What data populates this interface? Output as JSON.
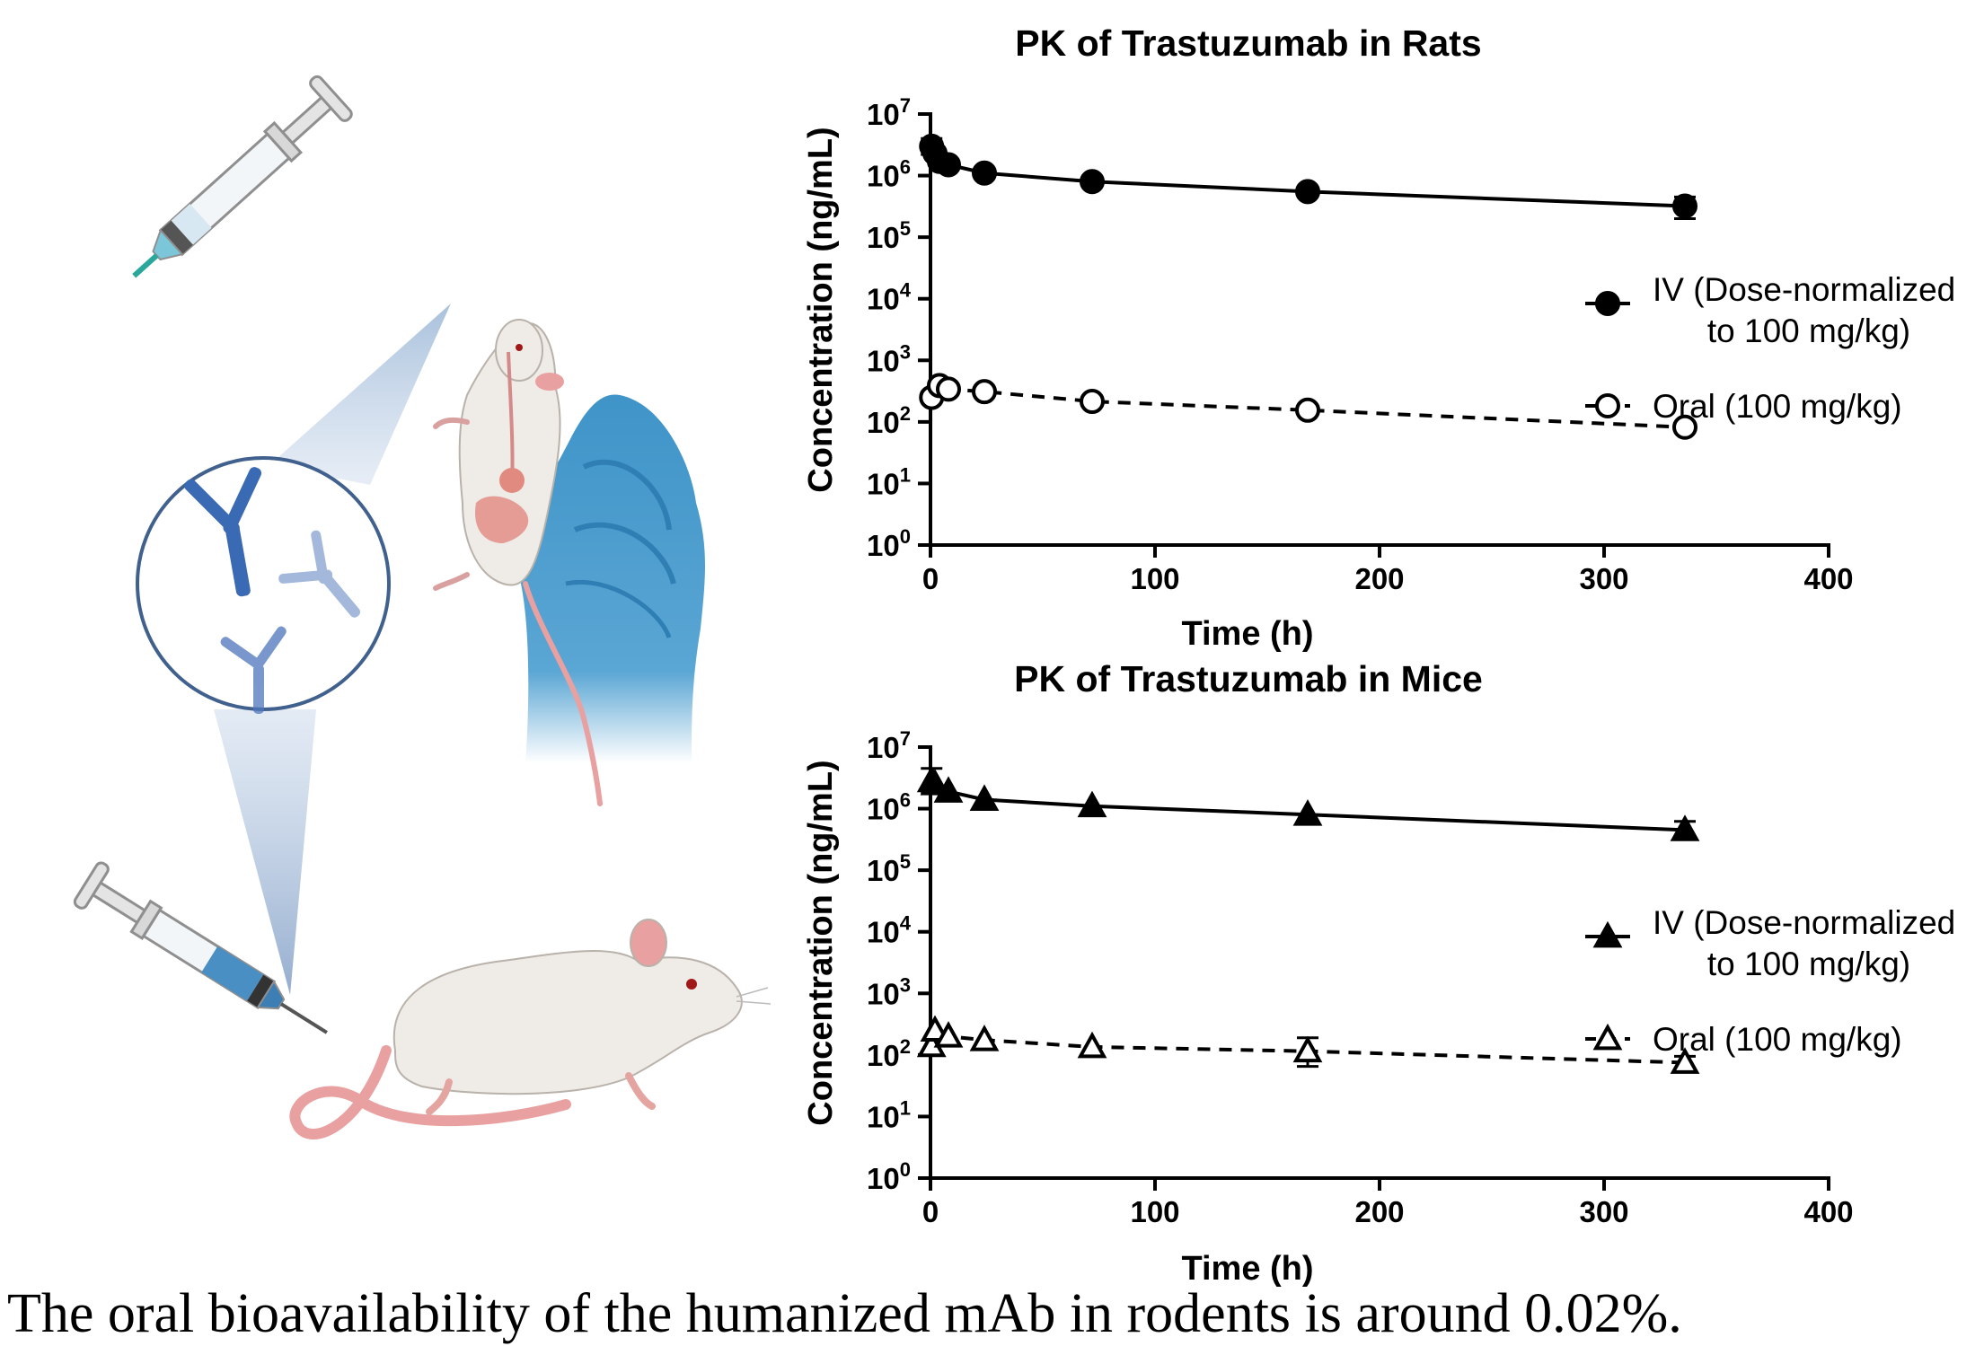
{
  "caption": "The oral bioavailability of the humanized mAb in rodents is around 0.02%.",
  "illustration": {
    "icons": [
      "syringe-icon",
      "rat-icon",
      "gloved-hand-icon",
      "antibody-icon",
      "mouse-icon"
    ],
    "colors": {
      "glove": "#4a9ccc",
      "antibody": "#3a6ab4",
      "rodent": "#efebe6",
      "tail": "#e8a0a0"
    }
  },
  "chart_data": [
    {
      "type": "line",
      "title": "PK of Trastuzumab in Rats",
      "xlabel": "Time (h)",
      "ylabel": "Concentration (ng/mL)",
      "xlim": [
        0,
        400
      ],
      "xticks": [
        0,
        100,
        200,
        300,
        400
      ],
      "ylim": [
        1,
        10000000
      ],
      "yscale": "log",
      "yticks": [
        {
          "base": "10",
          "exp": "0"
        },
        {
          "base": "10",
          "exp": "1"
        },
        {
          "base": "10",
          "exp": "2"
        },
        {
          "base": "10",
          "exp": "3"
        },
        {
          "base": "10",
          "exp": "4"
        },
        {
          "base": "10",
          "exp": "5"
        },
        {
          "base": "10",
          "exp": "6"
        },
        {
          "base": "10",
          "exp": "7"
        }
      ],
      "legend_position": "right",
      "series": [
        {
          "name_line1": "IV (Dose-normalized",
          "name_line2": "to 100 mg/kg)",
          "marker": "filled-circle",
          "line_style": "solid",
          "x": [
            0.5,
            2,
            4,
            8,
            24,
            72,
            168,
            336
          ],
          "y": [
            3000000,
            2300000,
            1700000,
            1500000,
            1100000,
            800000,
            550000,
            320000
          ],
          "error_upper": [
            4000000,
            null,
            null,
            null,
            null,
            null,
            null,
            450000
          ],
          "error_lower": [
            2200000,
            null,
            null,
            null,
            null,
            null,
            null,
            200000
          ]
        },
        {
          "name_line1": "Oral (100 mg/kg)",
          "marker": "open-circle",
          "line_style": "dashed",
          "x": [
            0.5,
            4,
            8,
            24,
            72,
            168,
            336
          ],
          "y": [
            250,
            390,
            340,
            310,
            215,
            155,
            82
          ],
          "error_upper": [
            null,
            null,
            null,
            null,
            null,
            null,
            null
          ],
          "error_lower": [
            null,
            null,
            null,
            null,
            null,
            null,
            null
          ]
        }
      ]
    },
    {
      "type": "line",
      "title": "PK of Trastuzumab in Mice",
      "xlabel": "Time (h)",
      "ylabel": "Concentration (ng/mL)",
      "xlim": [
        0,
        400
      ],
      "xticks": [
        0,
        100,
        200,
        300,
        400
      ],
      "ylim": [
        1,
        10000000
      ],
      "yscale": "log",
      "yticks": [
        {
          "base": "10",
          "exp": "0"
        },
        {
          "base": "10",
          "exp": "1"
        },
        {
          "base": "10",
          "exp": "2"
        },
        {
          "base": "10",
          "exp": "3"
        },
        {
          "base": "10",
          "exp": "4"
        },
        {
          "base": "10",
          "exp": "5"
        },
        {
          "base": "10",
          "exp": "6"
        },
        {
          "base": "10",
          "exp": "7"
        }
      ],
      "legend_position": "right",
      "series": [
        {
          "name_line1": "IV (Dose-normalized",
          "name_line2": "to 100 mg/kg)",
          "marker": "filled-triangle",
          "line_style": "solid",
          "x": [
            0.5,
            2,
            8,
            24,
            72,
            168,
            336
          ],
          "y": [
            2800000,
            2500000,
            1900000,
            1400000,
            1100000,
            800000,
            450000
          ],
          "error_upper": [
            4500000,
            null,
            null,
            null,
            null,
            null,
            620000
          ],
          "error_lower": [
            1800000,
            null,
            null,
            null,
            null,
            null,
            320000
          ]
        },
        {
          "name_line1": "Oral (100 mg/kg)",
          "marker": "open-triangle",
          "line_style": "dashed",
          "x": [
            0.5,
            2,
            8,
            24,
            72,
            168,
            336
          ],
          "y": [
            140,
            250,
            200,
            175,
            135,
            115,
            75
          ],
          "error_upper": [
            null,
            null,
            null,
            null,
            null,
            190,
            95
          ],
          "error_lower": [
            null,
            null,
            null,
            null,
            null,
            65,
            58
          ]
        }
      ]
    }
  ]
}
